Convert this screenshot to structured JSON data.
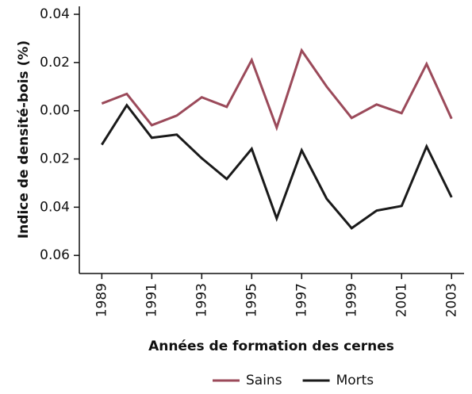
{
  "chart_data": {
    "type": "line",
    "x_label": "Années de formation des cernes",
    "y_label": "Indice de densité-bois (%)",
    "x": [
      1989,
      1990,
      1991,
      1992,
      1993,
      1994,
      1995,
      1996,
      1997,
      1998,
      1999,
      2000,
      2001,
      2002,
      2003
    ],
    "series": [
      {
        "name": "Sains",
        "color": "#9b4a5a",
        "values": [
          0.003,
          0.007,
          -0.006,
          -0.002,
          0.0056,
          0.0016,
          0.021,
          -0.007,
          0.025,
          0.01,
          -0.003,
          0.0026,
          -0.001,
          0.0194,
          -0.0033
        ]
      },
      {
        "name": "Morts",
        "color": "#1a1a1a",
        "values": [
          -0.0141,
          0.0023,
          -0.0112,
          -0.0099,
          -0.0197,
          -0.0283,
          -0.0158,
          -0.0447,
          -0.0164,
          -0.0365,
          -0.0487,
          -0.0414,
          -0.0395,
          -0.0148,
          -0.0359
        ]
      }
    ],
    "xlim": [
      1988.1,
      2003.5
    ],
    "xticks": [
      1989,
      1991,
      1993,
      1995,
      1997,
      1999,
      2001,
      2003
    ],
    "ylim": [
      -0.0675,
      0.0433
    ],
    "yticks": [
      {
        "value": 0.04,
        "label": "0.04"
      },
      {
        "value": 0.02,
        "label": "0.02"
      },
      {
        "value": 0,
        "label": "0.00"
      },
      {
        "value": -0.02,
        "label": "0.02"
      },
      {
        "value": -0.04,
        "label": "0.04"
      },
      {
        "value": -0.06,
        "label": "0.06"
      }
    ],
    "legend": "bottom"
  }
}
